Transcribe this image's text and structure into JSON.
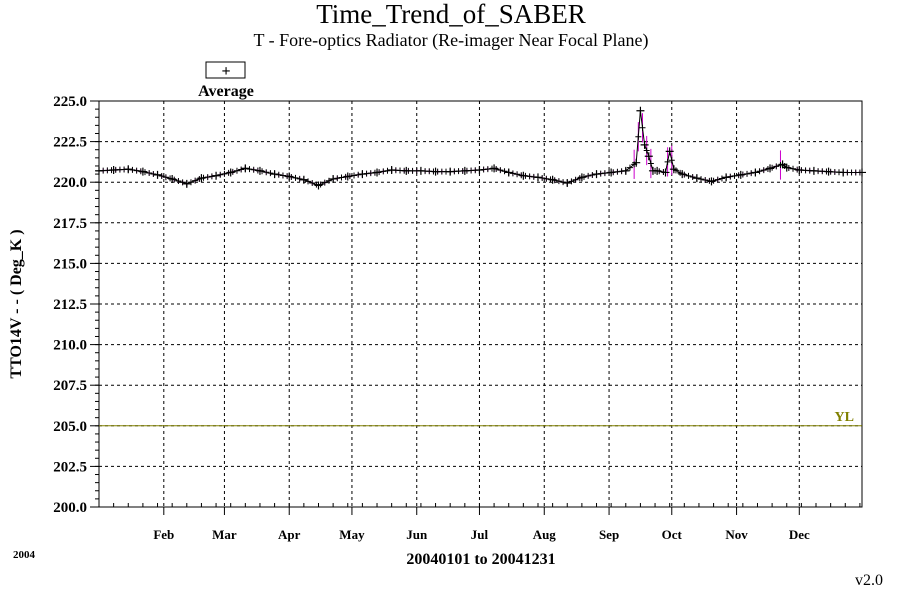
{
  "chart_data": {
    "type": "line",
    "title": "Time_Trend_of_SABER",
    "subtitle": "T - Fore-optics Radiator (Re-imager Near Focal Plane)",
    "ylabel": "TTO14V  - - ( Deg_K )",
    "xlabel": "20040101 to 20041231",
    "year_label": "2004",
    "version": "v2.0",
    "legend": {
      "label": "Average",
      "marker": "+"
    },
    "ylim": [
      200.0,
      225.0
    ],
    "y_ticks": [
      "200.0",
      "202.5",
      "205.0",
      "207.5",
      "210.0",
      "212.5",
      "215.0",
      "217.5",
      "220.0",
      "222.5",
      "225.0"
    ],
    "xlim": [
      1,
      366
    ],
    "x_ticks": [
      {
        "label": "Feb",
        "day": 32
      },
      {
        "label": "Mar",
        "day": 61
      },
      {
        "label": "Apr",
        "day": 92
      },
      {
        "label": "May",
        "day": 122
      },
      {
        "label": "Jun",
        "day": 153
      },
      {
        "label": "Jul",
        "day": 183
      },
      {
        "label": "Aug",
        "day": 214
      },
      {
        "label": "Sep",
        "day": 245
      },
      {
        "label": "Oct",
        "day": 275
      },
      {
        "label": "Nov",
        "day": 306
      },
      {
        "label": "Dec",
        "day": 336
      }
    ],
    "limit_line": {
      "label": "YL",
      "value": 205.0,
      "color": "#808000"
    },
    "grid": true,
    "series": [
      {
        "name": "Average",
        "color": "#000000",
        "range_color": "#cc00cc",
        "x": [
          1,
          8,
          15,
          22,
          29,
          36,
          43,
          50,
          57,
          64,
          71,
          78,
          85,
          92,
          99,
          106,
          113,
          120,
          127,
          134,
          141,
          148,
          155,
          162,
          169,
          176,
          183,
          190,
          197,
          204,
          211,
          218,
          225,
          232,
          239,
          246,
          253,
          258,
          260,
          262,
          264,
          266,
          268,
          272,
          274,
          276,
          280,
          287,
          294,
          301,
          308,
          315,
          322,
          328,
          330,
          336,
          343,
          350,
          357,
          366
        ],
        "y": [
          220.7,
          220.75,
          220.8,
          220.65,
          220.45,
          220.2,
          219.9,
          220.25,
          220.4,
          220.6,
          220.85,
          220.7,
          220.5,
          220.35,
          220.15,
          219.8,
          220.2,
          220.35,
          220.5,
          220.6,
          220.75,
          220.7,
          220.7,
          220.65,
          220.65,
          220.7,
          220.75,
          220.85,
          220.6,
          220.4,
          220.3,
          220.15,
          219.95,
          220.3,
          220.5,
          220.6,
          220.7,
          221.2,
          224.4,
          222.3,
          221.6,
          220.7,
          220.7,
          220.6,
          221.9,
          220.8,
          220.5,
          220.25,
          220.05,
          220.3,
          220.45,
          220.6,
          220.85,
          221.1,
          220.9,
          220.75,
          220.7,
          220.65,
          220.6,
          220.6
        ]
      }
    ]
  }
}
